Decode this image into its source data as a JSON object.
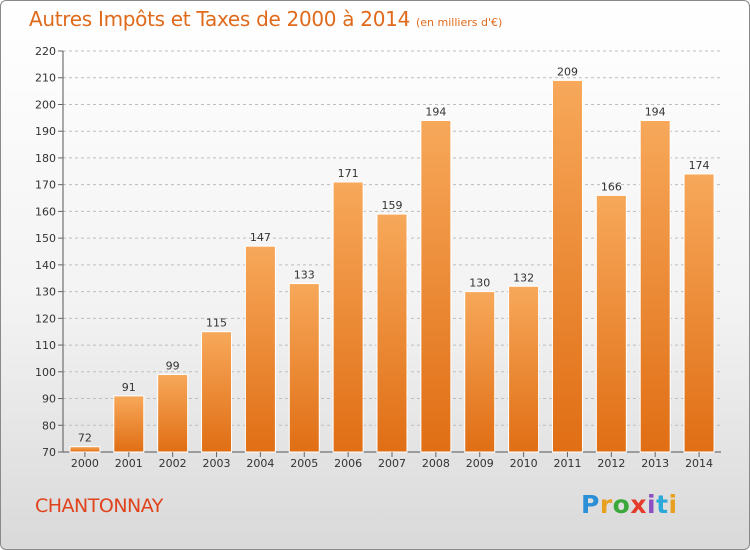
{
  "title": "Autres Impôts et Taxes de 2000 à 2014",
  "subtitle": "(en milliers d'€)",
  "commune": "CHANTONNAY",
  "logo": {
    "letters": [
      "P",
      "r",
      "o",
      "x",
      "i",
      "t",
      "i"
    ],
    "colors": [
      "#2a8fd6",
      "#e8a020",
      "#3aa83a",
      "#e63a2a",
      "#8a4fc0",
      "#2aa8d8",
      "#e8a020"
    ]
  },
  "colors": {
    "title": "#e06a1c",
    "bar_top": "#f7a85a",
    "bar_bottom": "#e06e14",
    "grid": "#bdbdbd",
    "commune": "#e0431c"
  },
  "chart_data": {
    "type": "bar",
    "categories": [
      "2000",
      "2001",
      "2002",
      "2003",
      "2004",
      "2005",
      "2006",
      "2007",
      "2008",
      "2009",
      "2010",
      "2011",
      "2012",
      "2013",
      "2014"
    ],
    "values": [
      72,
      91,
      99,
      115,
      147,
      133,
      171,
      159,
      194,
      130,
      132,
      209,
      166,
      194,
      174
    ],
    "ylim": [
      70,
      220
    ],
    "yticks": [
      70,
      80,
      90,
      100,
      110,
      120,
      130,
      140,
      150,
      160,
      170,
      180,
      190,
      200,
      210,
      220
    ],
    "grid": true,
    "data_labels": true
  }
}
